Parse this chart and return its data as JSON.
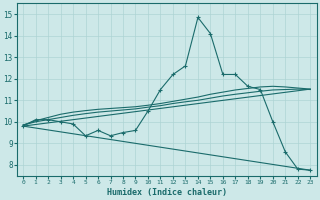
{
  "xlabel": "Humidex (Indice chaleur)",
  "xlim": [
    -0.5,
    23.5
  ],
  "ylim": [
    7.5,
    15.5
  ],
  "xticks": [
    0,
    1,
    2,
    3,
    4,
    5,
    6,
    7,
    8,
    9,
    10,
    11,
    12,
    13,
    14,
    15,
    16,
    17,
    18,
    19,
    20,
    21,
    22,
    23
  ],
  "yticks": [
    8,
    9,
    10,
    11,
    12,
    13,
    14,
    15
  ],
  "bg_color": "#cde8e8",
  "grid_color": "#aed4d4",
  "line_color": "#1a6b6b",
  "line1_x": [
    0,
    1,
    2,
    3,
    4,
    5,
    6,
    7,
    8,
    9,
    10,
    11,
    12,
    13,
    14,
    15,
    16,
    17,
    18,
    19,
    20,
    21,
    22,
    23
  ],
  "line1_y": [
    9.8,
    10.1,
    10.1,
    10.0,
    9.9,
    9.35,
    9.6,
    9.35,
    9.5,
    9.6,
    10.5,
    11.5,
    12.2,
    12.6,
    14.85,
    14.1,
    12.2,
    12.2,
    11.65,
    11.5,
    10.0,
    8.6,
    7.8,
    7.75
  ],
  "line2_x": [
    0,
    1,
    2,
    3,
    4,
    5,
    6,
    7,
    8,
    9,
    10,
    11,
    12,
    13,
    14,
    15,
    16,
    17,
    18,
    19,
    20,
    21,
    22,
    23
  ],
  "line2_y": [
    9.85,
    10.0,
    10.1,
    10.2,
    10.3,
    10.38,
    10.45,
    10.5,
    10.55,
    10.6,
    10.68,
    10.75,
    10.85,
    10.93,
    11.0,
    11.1,
    11.2,
    11.28,
    11.35,
    11.42,
    11.48,
    11.5,
    11.52,
    11.5
  ],
  "line3_x": [
    0,
    1,
    2,
    3,
    4,
    5,
    6,
    7,
    8,
    9,
    10,
    11,
    12,
    13,
    14,
    15,
    16,
    17,
    18,
    19,
    20,
    21,
    22,
    23
  ],
  "line3_y": [
    9.85,
    10.05,
    10.2,
    10.35,
    10.45,
    10.52,
    10.58,
    10.62,
    10.66,
    10.7,
    10.77,
    10.85,
    10.95,
    11.05,
    11.15,
    11.28,
    11.38,
    11.48,
    11.55,
    11.62,
    11.65,
    11.62,
    11.57,
    11.52
  ],
  "line4_x": [
    0,
    23
  ],
  "line4_y": [
    9.8,
    7.75
  ],
  "line5_x": [
    0,
    23
  ],
  "line5_y": [
    9.8,
    11.52
  ]
}
